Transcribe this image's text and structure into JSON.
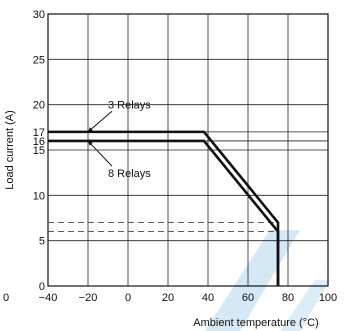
{
  "chart_data": {
    "type": "line",
    "title": "",
    "xlabel": "Ambient temperature (°C)",
    "ylabel": "Load current (A)",
    "xlim": [
      -40,
      100
    ],
    "ylim": [
      0,
      30
    ],
    "grid": true,
    "x_ticks": [
      -40,
      -20,
      0,
      20,
      40,
      60,
      80,
      100
    ],
    "x_tick_labels": [
      "−40",
      "−20",
      "0",
      "20",
      "40",
      "60",
      "80",
      "100"
    ],
    "y_ticks": [
      0,
      5,
      10,
      15,
      16,
      17,
      20,
      25,
      30
    ],
    "y_tick_labels": [
      "0",
      "5",
      "10",
      "15",
      "16",
      "17",
      "20",
      "25",
      "30"
    ],
    "series": [
      {
        "name": "3 Relays",
        "x": [
          -40,
          38,
          75,
          75
        ],
        "y": [
          17,
          17,
          7,
          0
        ]
      },
      {
        "name": "8 Relays",
        "x": [
          -40,
          38,
          75,
          75
        ],
        "y": [
          16,
          16,
          6,
          0
        ]
      }
    ],
    "reference_lines": [
      {
        "y": 7,
        "x_range": [
          -40,
          75
        ],
        "style": "dashed"
      },
      {
        "y": 6,
        "x_range": [
          -40,
          75
        ],
        "style": "dashed"
      }
    ],
    "annotations": [
      {
        "text": "3 Relays",
        "x": -10,
        "y": 19.6,
        "arrow_to": [
          -20,
          17
        ]
      },
      {
        "text": "8 Relays",
        "x": -10,
        "y": 12.0,
        "arrow_to": [
          -20,
          16
        ]
      }
    ],
    "extra_tick_label": "0",
    "colors": {
      "line": "#111111",
      "grid": "#222222",
      "dashed": "#444444",
      "watermark": "#cfe6f5"
    }
  }
}
